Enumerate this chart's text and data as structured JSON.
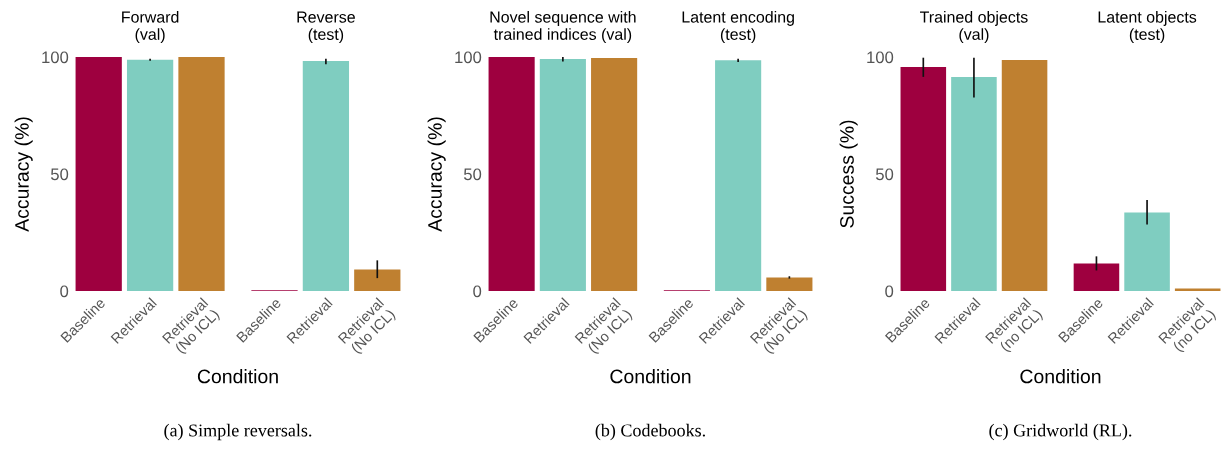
{
  "chart_data": [
    {
      "type": "bar",
      "title": "(a) Simple reversals.",
      "ylabel": "Accuracy (%)",
      "xlabel": "Condition",
      "annotations": [
        "Forward\n(val)",
        "Reverse\n(test)"
      ],
      "categories": [
        "Baseline",
        "Retrieval",
        "Retrieval\n(No ICL)",
        "Baseline",
        "Retrieval",
        "Retrieval\n(No ICL)"
      ],
      "values": [
        100,
        98.8,
        100,
        0.3,
        98.3,
        9.2
      ],
      "colors": [
        "#9e003f",
        "#7fcdc0",
        "#bf8030",
        "#9e003f",
        "#7fcdc0",
        "#bf8030"
      ],
      "errors": [
        null,
        [
          98.4,
          99.2
        ],
        null,
        null,
        [
          96.9,
          99.3
        ],
        [
          5.5,
          13.1
        ]
      ],
      "ylim": [
        0,
        100
      ],
      "yticks": [
        0,
        50,
        100
      ],
      "grid": false
    },
    {
      "type": "bar",
      "title": "(b) Codebooks.",
      "ylabel": "Accuracy (%)",
      "xlabel": "Condition",
      "annotations": [
        "Novel sequence with\ntrained indices (val)",
        "Latent encoding\n(test)"
      ],
      "categories": [
        "Baseline",
        "Retrieval",
        "Retrieval\n(No ICL)",
        "Baseline",
        "Retrieval",
        "Retrieval\n(No ICL)"
      ],
      "values": [
        100,
        99.1,
        99.6,
        0.3,
        98.6,
        5.8
      ],
      "colors": [
        "#9e003f",
        "#7fcdc0",
        "#bf8030",
        "#9e003f",
        "#7fcdc0",
        "#bf8030"
      ],
      "errors": [
        null,
        [
          98.1,
          100
        ],
        null,
        null,
        [
          97.9,
          99.3
        ],
        [
          5.3,
          6.3
        ]
      ],
      "ylim": [
        0,
        100
      ],
      "yticks": [
        0,
        50,
        100
      ],
      "grid": false
    },
    {
      "type": "bar",
      "title": "(c) Gridworld (RL).",
      "ylabel": "Success (%)",
      "xlabel": "Condition",
      "annotations": [
        "Trained objects\n(val)",
        "Latent objects\n(test)"
      ],
      "categories": [
        "Baseline",
        "Retrieval",
        "Retrieval\n(no ICL)",
        "Baseline",
        "Retrieval",
        "Retrieval\n(no ICL)"
      ],
      "values": [
        95.7,
        91.5,
        98.7,
        11.8,
        33.5,
        1.1
      ],
      "colors": [
        "#9e003f",
        "#7fcdc0",
        "#bf8030",
        "#9e003f",
        "#7fcdc0",
        "#bf8030"
      ],
      "errors": [
        [
          91.5,
          99.7
        ],
        [
          82.7,
          99.7
        ],
        null,
        [
          8.8,
          14.8
        ],
        [
          28.4,
          38.9
        ],
        null
      ],
      "ylim": [
        0,
        100
      ],
      "yticks": [
        0,
        50,
        100
      ],
      "grid": false
    }
  ]
}
